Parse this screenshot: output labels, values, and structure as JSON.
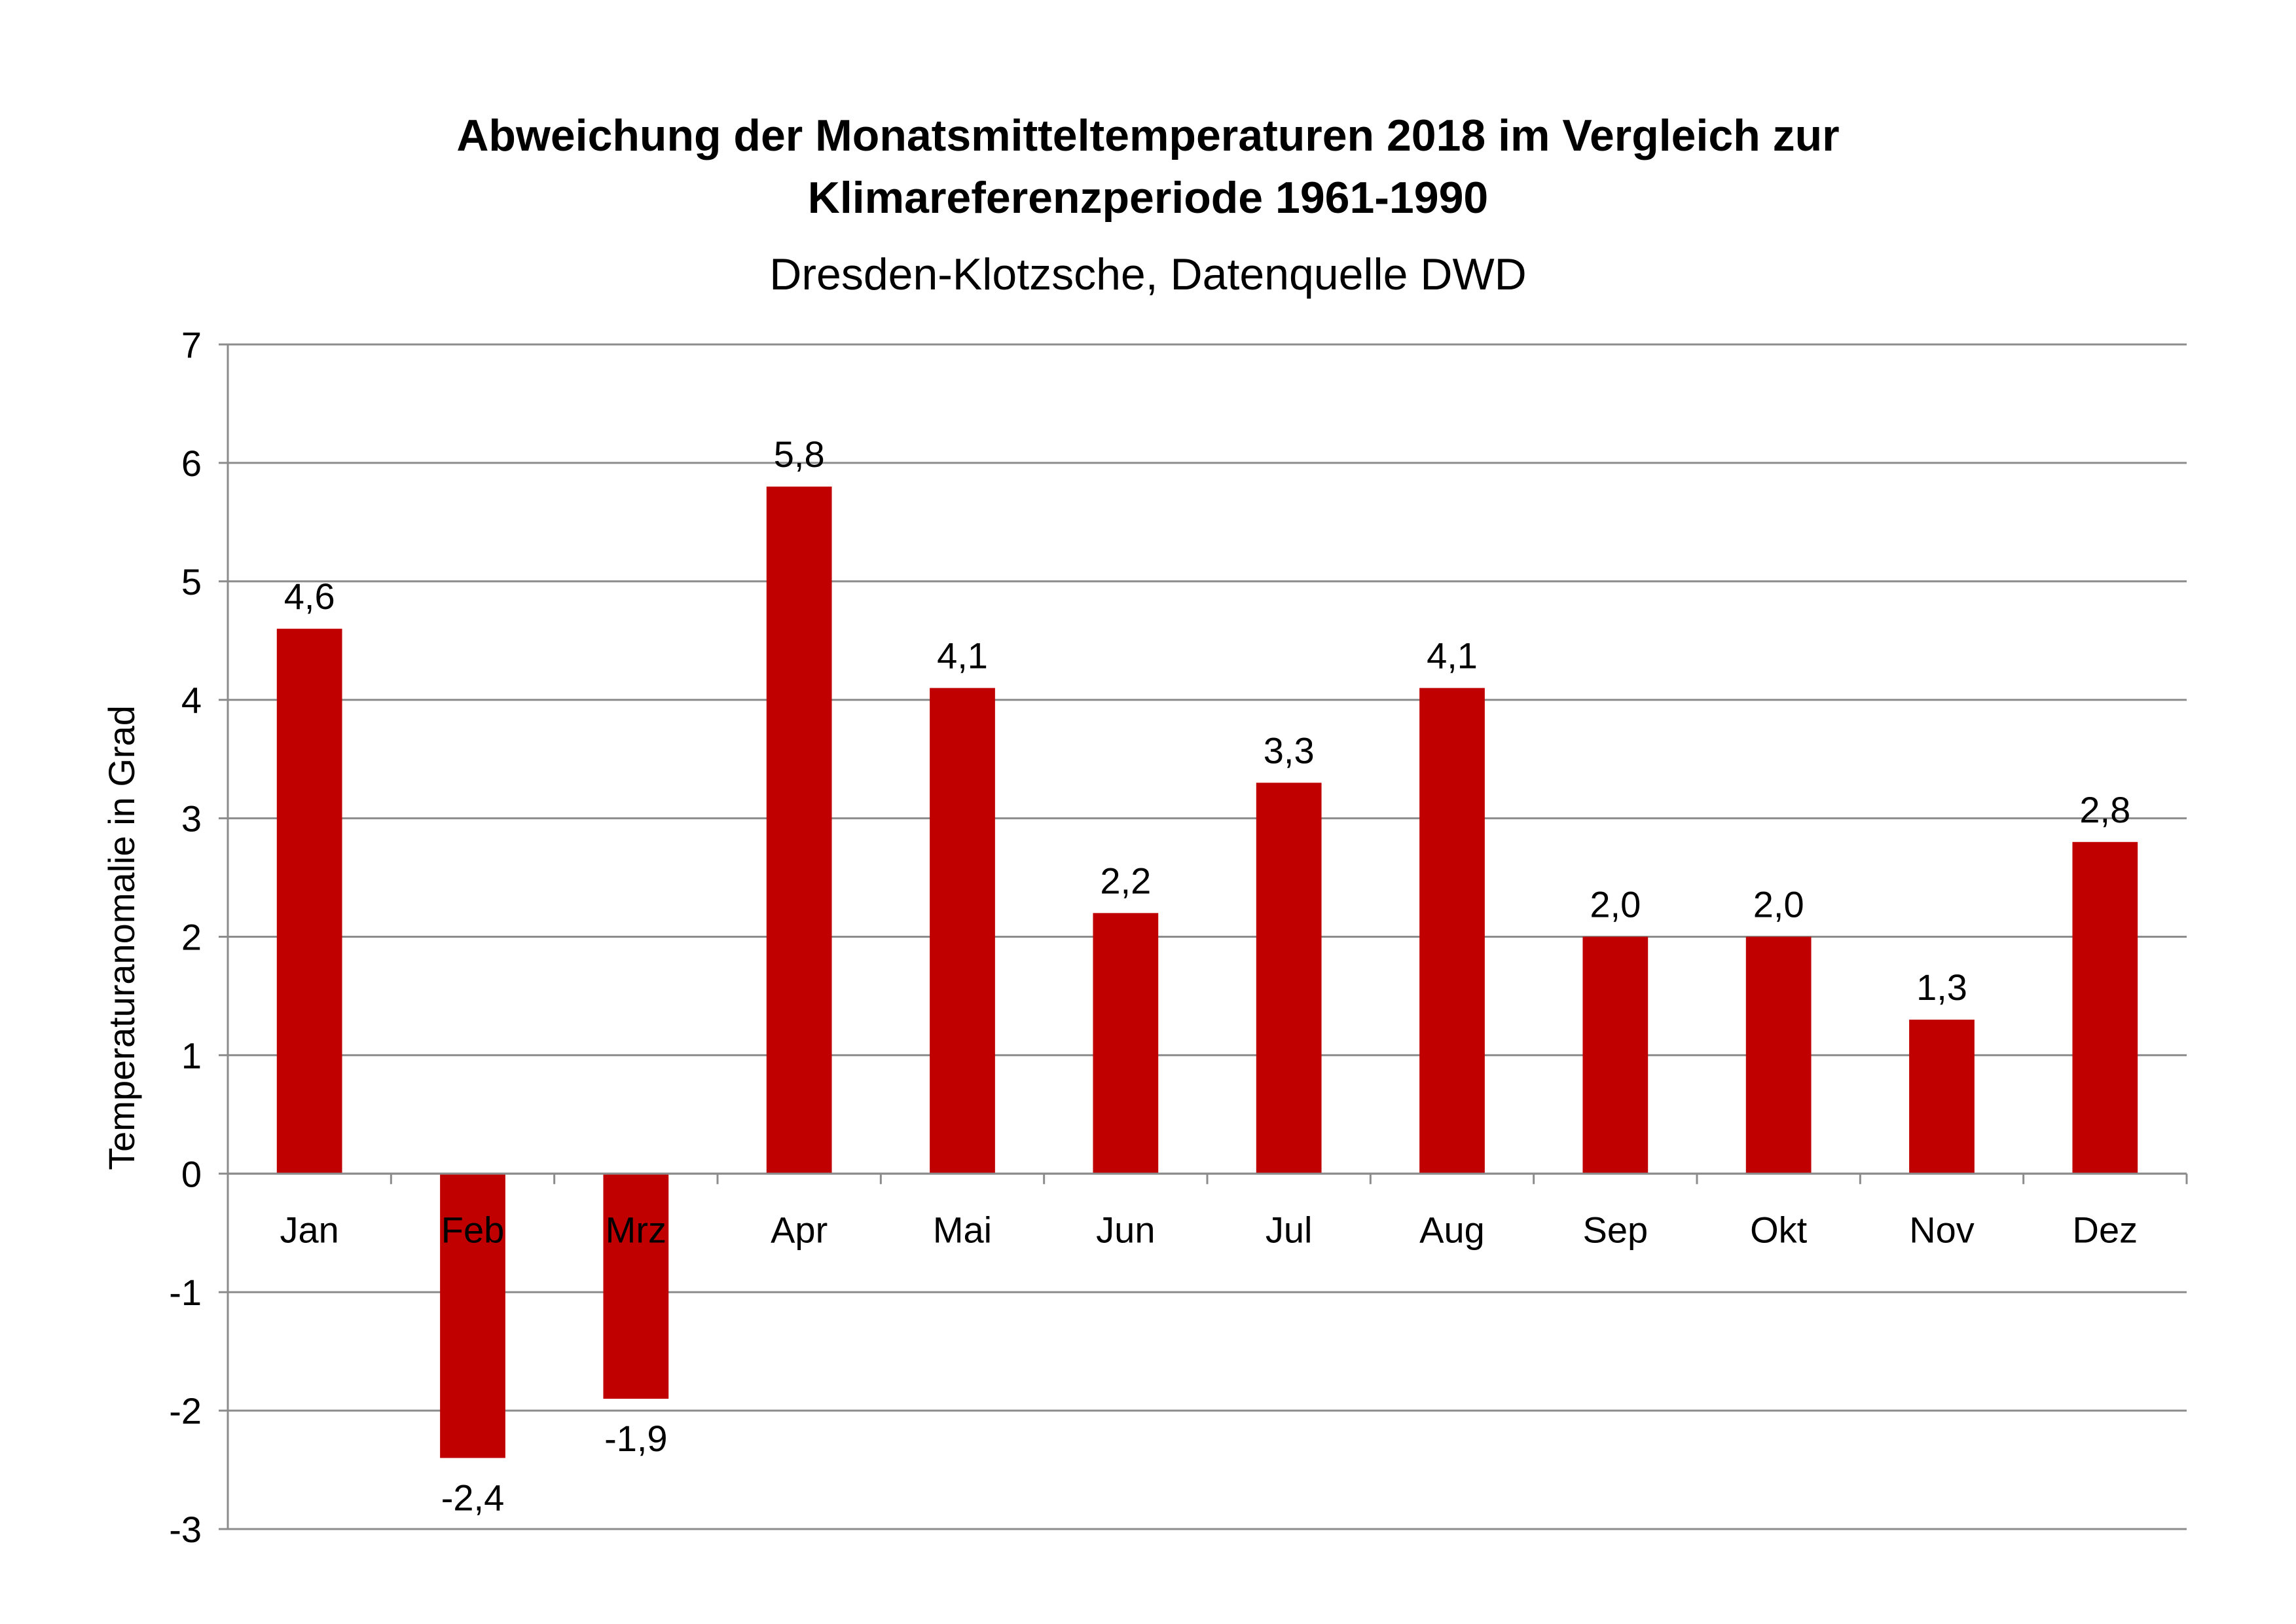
{
  "chart_data": {
    "type": "bar",
    "title": "Abweichung der Monatsmitteltemperaturen 2018 im Vergleich zur Klimareferenzperiode 1961-1990",
    "title_lines": [
      "Abweichung der Monatsmitteltemperaturen 2018 im Vergleich zur",
      "Klimareferenzperiode 1961-1990"
    ],
    "subtitle": "Dresden-Klotzsche, Datenquelle DWD",
    "ylabel": "Temperaturanomalie in Grad",
    "xlabel": "",
    "categories": [
      "Jan",
      "Feb",
      "Mrz",
      "Apr",
      "Mai",
      "Jun",
      "Jul",
      "Aug",
      "Sep",
      "Okt",
      "Nov",
      "Dez"
    ],
    "values": [
      4.6,
      -2.4,
      -1.9,
      5.8,
      4.1,
      2.2,
      3.3,
      4.1,
      2.0,
      2.0,
      1.3,
      2.8
    ],
    "data_labels": [
      "4,6",
      "-2,4",
      "-1,9",
      "5,8",
      "4,1",
      "2,2",
      "3,3",
      "4,1",
      "2,0",
      "2,0",
      "1,3",
      "2,8"
    ],
    "yticks": [
      "7",
      "6",
      "5",
      "4",
      "3",
      "2",
      "1",
      "0",
      "-1",
      "-2",
      "-3"
    ],
    "ylim": [
      -3,
      7
    ],
    "grid": true,
    "legend": "none",
    "bar_color": "#c00000",
    "grid_color": "#8c8c8c"
  }
}
